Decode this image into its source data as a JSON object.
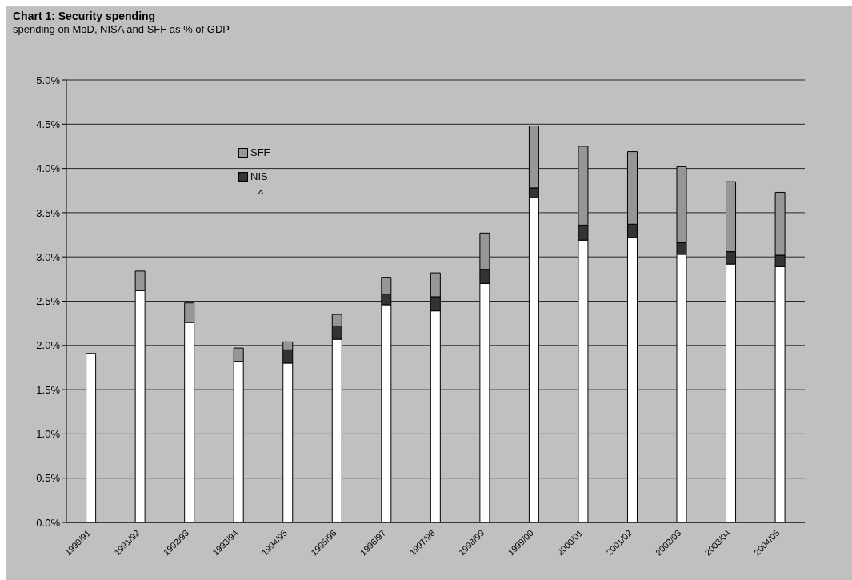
{
  "chart_data": {
    "type": "bar",
    "title": "Chart 1: Security spending",
    "subtitle": "spending on MoD, NISA and SFF as % of GDP",
    "categories": [
      "1990/91",
      "1991/92",
      "1992/93",
      "1993/94",
      "1994/95",
      "1995/96",
      "1996/97",
      "1997/98",
      "1998/99",
      "1999/00",
      "2000/01",
      "2001/02",
      "2002/03",
      "2003/04",
      "2004/05"
    ],
    "stacked": true,
    "series": [
      {
        "color": "#ffffff",
        "values": [
          1.91,
          2.62,
          2.26,
          1.82,
          1.8,
          2.07,
          2.46,
          2.39,
          2.7,
          3.67,
          3.19,
          3.22,
          3.03,
          2.92,
          2.89
        ]
      },
      {
        "name": "NIS",
        "color": "#333333",
        "values": [
          null,
          null,
          null,
          null,
          0.15,
          0.15,
          0.12,
          0.16,
          0.16,
          0.11,
          0.17,
          0.15,
          0.13,
          0.14,
          0.13
        ]
      },
      {
        "name": "SFF",
        "color": "#969696",
        "values": [
          null,
          0.22,
          0.22,
          0.15,
          0.09,
          0.13,
          0.19,
          0.27,
          0.41,
          0.7,
          0.89,
          0.82,
          0.86,
          0.79,
          0.71
        ]
      }
    ],
    "ylim": [
      0,
      5
    ],
    "yticks": [
      {
        "value": 0,
        "label": "0.0%"
      },
      {
        "value": 0.5,
        "label": "0.5%"
      },
      {
        "value": 1,
        "label": "1.0%"
      },
      {
        "value": 1.5,
        "label": "1.5%"
      },
      {
        "value": 2,
        "label": "2.0%"
      },
      {
        "value": 2.5,
        "label": "2.5%"
      },
      {
        "value": 3,
        "label": "3.0%"
      },
      {
        "value": 3.5,
        "label": "3.5%"
      },
      {
        "value": 4,
        "label": "4.0%"
      },
      {
        "value": 4.5,
        "label": "4.5%"
      },
      {
        "value": 5,
        "label": "5.0%"
      }
    ],
    "grid": "y",
    "legend": "top left",
    "annotations": [
      "^"
    ]
  }
}
